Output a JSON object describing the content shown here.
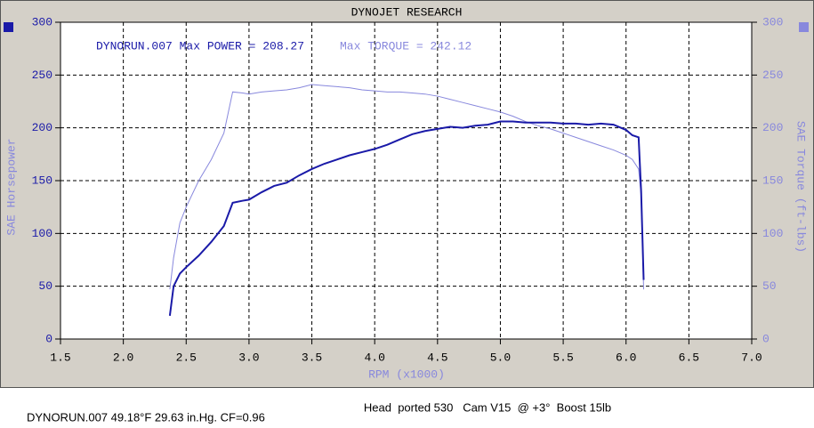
{
  "chart_data": {
    "type": "line",
    "title": "DYNOJET RESEARCH",
    "subtitle": "Head  ported 530   Cam V15  @ +3°  Boost 15lb",
    "footnote": "DYNORUN.007 49.18°F 29.63 in.Hg. CF=0.96",
    "annotations": [
      "DYNORUN.007 Max POWER = 208.27",
      "Max TORQUE = 242.12"
    ],
    "x_label": "RPM (x1000)",
    "y_label": "SAE Horsepower",
    "y2_label": "SAE Torque (ft-lbs)",
    "x": [
      2.37,
      2.4,
      2.45,
      2.5,
      2.6,
      2.7,
      2.8,
      2.87,
      2.95,
      3.0,
      3.1,
      3.2,
      3.3,
      3.4,
      3.5,
      3.6,
      3.7,
      3.8,
      3.9,
      4.0,
      4.1,
      4.2,
      4.3,
      4.4,
      4.5,
      4.6,
      4.7,
      4.8,
      4.9,
      5.0,
      5.1,
      5.2,
      5.3,
      5.4,
      5.5,
      5.6,
      5.7,
      5.8,
      5.9,
      6.0,
      6.05,
      6.1,
      6.12,
      6.14
    ],
    "series": [
      {
        "color": "#1a1aa8",
        "values": [
          22,
          50,
          62,
          68,
          79,
          92,
          107,
          129,
          131,
          132,
          139,
          145,
          148,
          155,
          161,
          166,
          170,
          174,
          177,
          180,
          184,
          189,
          194,
          197,
          199,
          201,
          200,
          202,
          203,
          206,
          206,
          205,
          205,
          205,
          204,
          204,
          203,
          204,
          203,
          198,
          193,
          191,
          140,
          56
        ]
      },
      {
        "color": "#8888dd",
        "axis": "y2",
        "values": [
          47,
          77,
          110,
          125,
          150,
          170,
          195,
          234,
          233,
          232,
          234,
          235,
          236,
          238,
          241,
          240,
          239,
          238,
          236,
          235,
          234,
          234,
          233,
          232,
          230,
          227,
          224,
          221,
          218,
          215,
          211,
          206,
          202,
          199,
          195,
          191,
          187,
          183,
          179,
          174,
          170,
          161,
          136,
          47
        ]
      }
    ],
    "xlim": [
      1.5,
      7.0
    ],
    "xticks": [
      1.5,
      {
        "value": 2,
        "label": "2.0"
      },
      2.5,
      {
        "value": 3,
        "label": "3.0"
      },
      3.5,
      {
        "value": 4,
        "label": "4.0"
      },
      4.5,
      {
        "value": 5,
        "label": "5.0"
      },
      5.5,
      {
        "value": 6,
        "label": "6.0"
      },
      6.5,
      {
        "value": 7,
        "label": "7.0"
      }
    ],
    "ylim": [
      0,
      300
    ],
    "yticks": [
      0,
      50,
      100,
      150,
      200,
      250,
      300
    ],
    "y2lim": [
      0,
      300
    ],
    "y2ticks": [
      0,
      50,
      100,
      150,
      200,
      250,
      300
    ],
    "grid": true
  }
}
